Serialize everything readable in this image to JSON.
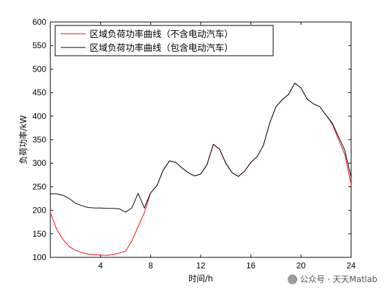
{
  "chart_data": {
    "type": "line",
    "xlabel": "时间/h",
    "ylabel": "负荷功率/kW",
    "xlim": [
      0,
      24
    ],
    "ylim": [
      100,
      600
    ],
    "xticks": [
      4,
      8,
      12,
      16,
      20,
      24
    ],
    "yticks": [
      100,
      150,
      200,
      250,
      300,
      350,
      400,
      450,
      500,
      550,
      600
    ],
    "grid": false,
    "legend_position": "top-left",
    "series": [
      {
        "name": "区域负荷功率曲线（不含电动汽车）",
        "color": "#ff0000",
        "x": [
          0,
          0.5,
          1,
          1.5,
          2,
          2.5,
          3,
          3.5,
          4,
          4.5,
          5,
          5.5,
          6,
          6.5,
          7,
          7.5,
          8,
          8.5,
          9,
          9.5,
          10,
          10.5,
          11,
          11.5,
          12,
          12.5,
          13,
          13.5,
          14,
          14.5,
          15,
          15.5,
          16,
          16.5,
          17,
          17.5,
          18,
          18.5,
          19,
          19.5,
          20,
          20.5,
          21,
          21.5,
          22,
          22.5,
          23,
          23.5,
          24
        ],
        "y": [
          195,
          160,
          138,
          123,
          115,
          110,
          107,
          106,
          105,
          104,
          106,
          109,
          113,
          135,
          165,
          195,
          237,
          252,
          285,
          305,
          302,
          290,
          280,
          273,
          277,
          297,
          340,
          330,
          300,
          280,
          272,
          283,
          302,
          314,
          338,
          385,
          420,
          435,
          446,
          470,
          460,
          436,
          426,
          420,
          402,
          383,
          350,
          318,
          255
        ]
      },
      {
        "name": "区域负荷功率曲线（包含电动汽车）",
        "color": "#000000",
        "x": [
          0,
          0.5,
          1,
          1.5,
          2,
          2.5,
          3,
          3.5,
          4,
          4.5,
          5,
          5.5,
          6,
          6.5,
          7,
          7.5,
          8,
          8.5,
          9,
          9.5,
          10,
          10.5,
          11,
          11.5,
          12,
          12.5,
          13,
          13.5,
          14,
          14.5,
          15,
          15.5,
          16,
          16.5,
          17,
          17.5,
          18,
          18.5,
          19,
          19.5,
          20,
          20.5,
          21,
          21.5,
          22,
          22.5,
          23,
          23.5,
          24
        ],
        "y": [
          235,
          235,
          232,
          225,
          215,
          210,
          206,
          205,
          205,
          204,
          204,
          203,
          196,
          205,
          236,
          205,
          237,
          252,
          285,
          305,
          302,
          290,
          280,
          273,
          277,
          297,
          340,
          330,
          300,
          280,
          272,
          283,
          302,
          314,
          338,
          385,
          420,
          435,
          446,
          470,
          460,
          436,
          426,
          420,
          402,
          385,
          356,
          327,
          270
        ]
      }
    ]
  },
  "watermark": {
    "text": "公众号 · 天天Matlab",
    "icon": "wechat-icon"
  }
}
